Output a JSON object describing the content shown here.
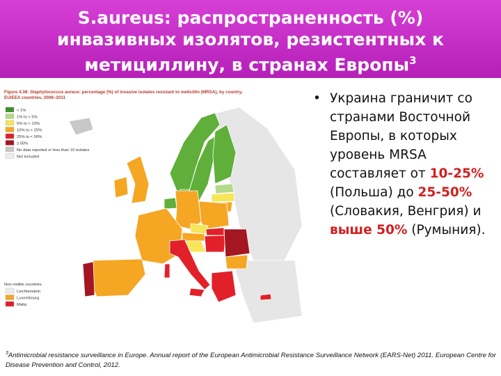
{
  "header": {
    "title": "S.aureus: распространенность (%) инвазивных изолятов, резистентных к метициллину, в странах Европы",
    "footnote_mark": "3"
  },
  "figure": {
    "caption_label": "Figure 4.38:",
    "caption_species": "Staphylococcus aureus",
    "caption_rest": ": percentage (%) of invasive isolates resistant to meticillin (MRSA), by country,",
    "caption_line2": "EU/EEA countries, 2008–2011",
    "legend": [
      "< 1%",
      "1% to < 5%",
      "5% to < 10%",
      "10% to < 25%",
      "25% to < 50%",
      "≥ 50%",
      "No data reported or less than 10 isolates",
      "Not included"
    ],
    "non_visible_title": "Non-visible countries",
    "non_visible": [
      "Liechtenstein",
      "Luxembourg",
      "Malta"
    ]
  },
  "bullet": {
    "parts": [
      "Украина граничит со странами Восточной Европы, в которых уровень MRSA составляет от ",
      "10-25%",
      " (Польша) до ",
      "25-50%",
      " (Словакия, Венгрия) и ",
      "выше 50%",
      " (Румыния)."
    ]
  },
  "footnote": {
    "mark": "3",
    "text": "Antimicrobial resistance surveillance in Europe. Annual report of the European Antimicrobial Resistance Surveillance Network (EARS-Net) 2011. European Centre for Disease Prevention and Control, 2012."
  }
}
